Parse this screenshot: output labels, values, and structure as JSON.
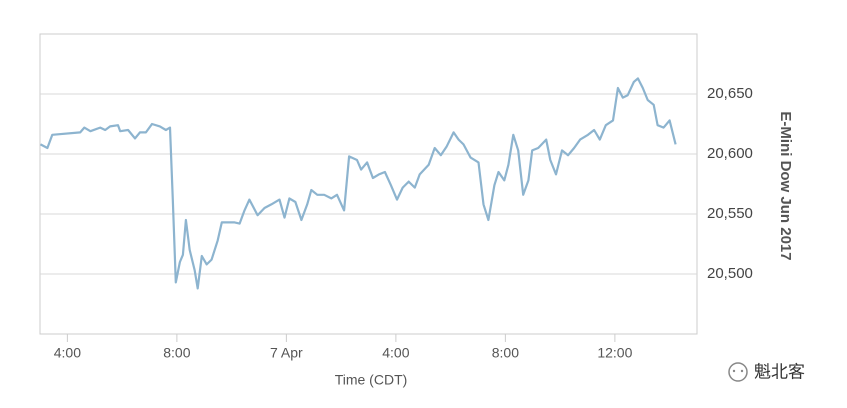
{
  "chart_data": {
    "type": "line",
    "x_label": "Time (CDT)",
    "y_label": "E-Mini Dow Jun 2017",
    "y_axis_position": "right",
    "watermark": "魁北客",
    "grid": true,
    "xlim": [
      3,
      27
    ],
    "xticks": [
      {
        "value": 4,
        "label": "4:00"
      },
      {
        "value": 8,
        "label": "8:00"
      },
      {
        "value": 12,
        "label": "7 Apr"
      },
      {
        "value": 16,
        "label": "4:00"
      },
      {
        "value": 20,
        "label": "8:00"
      },
      {
        "value": 24,
        "label": "12:00"
      }
    ],
    "ylim": [
      20450,
      20700
    ],
    "yticks": [
      {
        "value": 20500,
        "label": "20,500"
      },
      {
        "value": 20550,
        "label": "20,550"
      },
      {
        "value": 20600,
        "label": "20,600"
      },
      {
        "value": 20650,
        "label": "20,650"
      }
    ],
    "series": [
      {
        "color": "#8db4cf",
        "x": [
          3.02,
          3.27,
          3.45,
          4.47,
          4.62,
          4.84,
          5.2,
          5.38,
          5.56,
          5.85,
          5.93,
          6.22,
          6.47,
          6.65,
          6.87,
          7.09,
          7.38,
          7.6,
          7.75,
          7.85,
          7.96,
          8.11,
          8.22,
          8.33,
          8.47,
          8.65,
          8.76,
          8.91,
          9.09,
          9.27,
          9.49,
          9.64,
          10.11,
          10.29,
          10.47,
          10.65,
          10.95,
          11.2,
          11.45,
          11.75,
          11.93,
          12.11,
          12.33,
          12.55,
          12.76,
          12.91,
          13.13,
          13.38,
          13.64,
          13.85,
          14.11,
          14.29,
          14.58,
          14.73,
          14.95,
          15.16,
          15.38,
          15.6,
          15.82,
          16.04,
          16.25,
          16.47,
          16.69,
          16.87,
          17.2,
          17.42,
          17.64,
          17.85,
          18.11,
          18.29,
          18.47,
          18.73,
          19.02,
          19.2,
          19.38,
          19.6,
          19.75,
          19.96,
          20.11,
          20.29,
          20.47,
          20.65,
          20.84,
          20.98,
          21.2,
          21.49,
          21.64,
          21.85,
          22.07,
          22.29,
          22.51,
          22.73,
          23.02,
          23.24,
          23.45,
          23.67,
          23.93,
          24.11,
          24.29,
          24.47,
          24.69,
          24.84,
          25.02,
          25.2,
          25.42,
          25.56,
          25.78,
          26.0,
          26.22
        ],
        "values": [
          20608,
          20605,
          20616,
          20618,
          20622,
          20619,
          20622,
          20620,
          20623,
          20624,
          20619,
          20620,
          20613,
          20618,
          20618,
          20625,
          20623,
          20620,
          20622,
          20562,
          20493,
          20510,
          20516,
          20545,
          20520,
          20503,
          20488,
          20515,
          20508,
          20512,
          20528,
          20543,
          20543,
          20542,
          20553,
          20562,
          20549,
          20555,
          20558,
          20562,
          20547,
          20563,
          20560,
          20545,
          20558,
          20570,
          20566,
          20566,
          20563,
          20566,
          20553,
          20598,
          20595,
          20587,
          20593,
          20580,
          20583,
          20585,
          20574,
          20562,
          20572,
          20577,
          20572,
          20583,
          20591,
          20605,
          20599,
          20606,
          20618,
          20612,
          20608,
          20597,
          20593,
          20558,
          20545,
          20574,
          20585,
          20578,
          20591,
          20616,
          20603,
          20566,
          20578,
          20603,
          20605,
          20612,
          20595,
          20583,
          20603,
          20599,
          20605,
          20612,
          20616,
          20620,
          20612,
          20624,
          20628,
          20655,
          20647,
          20649,
          20660,
          20663,
          20655,
          20645,
          20641,
          20624,
          20622,
          20628,
          20608
        ]
      }
    ]
  }
}
